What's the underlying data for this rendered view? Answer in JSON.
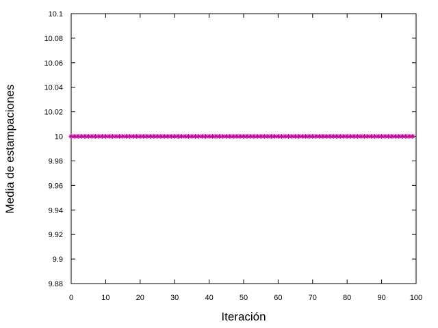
{
  "chart_data": {
    "type": "scatter",
    "title": "",
    "xlabel": "Iteración",
    "ylabel": "Media de estampaciones",
    "xlim": [
      0,
      100
    ],
    "ylim": [
      9.88,
      10.1
    ],
    "xticks": [
      0,
      10,
      20,
      30,
      40,
      50,
      60,
      70,
      80,
      90,
      100
    ],
    "xtick_labels": [
      "0",
      "10",
      "20",
      "30",
      "40",
      "50",
      "60",
      "70",
      "80",
      "90",
      "100"
    ],
    "yticks": [
      9.88,
      9.9,
      9.92,
      9.94,
      9.96,
      9.98,
      10,
      10.02,
      10.04,
      10.06,
      10.08,
      10.1
    ],
    "ytick_labels": [
      "9.88",
      "9.9",
      "9.92",
      "9.94",
      "9.96",
      "9.98",
      "10",
      "10.02",
      "10.04",
      "10.06",
      "10.08",
      "10.1"
    ],
    "grid": false,
    "legend": false,
    "series": [
      {
        "color": "#cc0099",
        "marker": "star",
        "x": [
          0,
          1,
          2,
          3,
          4,
          5,
          6,
          7,
          8,
          9,
          10,
          11,
          12,
          13,
          14,
          15,
          16,
          17,
          18,
          19,
          20,
          21,
          22,
          23,
          24,
          25,
          26,
          27,
          28,
          29,
          30,
          31,
          32,
          33,
          34,
          35,
          36,
          37,
          38,
          39,
          40,
          41,
          42,
          43,
          44,
          45,
          46,
          47,
          48,
          49,
          50,
          51,
          52,
          53,
          54,
          55,
          56,
          57,
          58,
          59,
          60,
          61,
          62,
          63,
          64,
          65,
          66,
          67,
          68,
          69,
          70,
          71,
          72,
          73,
          74,
          75,
          76,
          77,
          78,
          79,
          80,
          81,
          82,
          83,
          84,
          85,
          86,
          87,
          88,
          89,
          90,
          91,
          92,
          93,
          94,
          95,
          96,
          97,
          98,
          99
        ],
        "y": [
          10,
          10,
          10,
          10,
          10,
          10,
          10,
          10,
          10,
          10,
          10,
          10,
          10,
          10,
          10,
          10,
          10,
          10,
          10,
          10,
          10,
          10,
          10,
          10,
          10,
          10,
          10,
          10,
          10,
          10,
          10,
          10,
          10,
          10,
          10,
          10,
          10,
          10,
          10,
          10,
          10,
          10,
          10,
          10,
          10,
          10,
          10,
          10,
          10,
          10,
          10,
          10,
          10,
          10,
          10,
          10,
          10,
          10,
          10,
          10,
          10,
          10,
          10,
          10,
          10,
          10,
          10,
          10,
          10,
          10,
          10,
          10,
          10,
          10,
          10,
          10,
          10,
          10,
          10,
          10,
          10,
          10,
          10,
          10,
          10,
          10,
          10,
          10,
          10,
          10,
          10,
          10,
          10,
          10,
          10,
          10,
          10,
          10,
          10,
          10
        ]
      }
    ]
  }
}
